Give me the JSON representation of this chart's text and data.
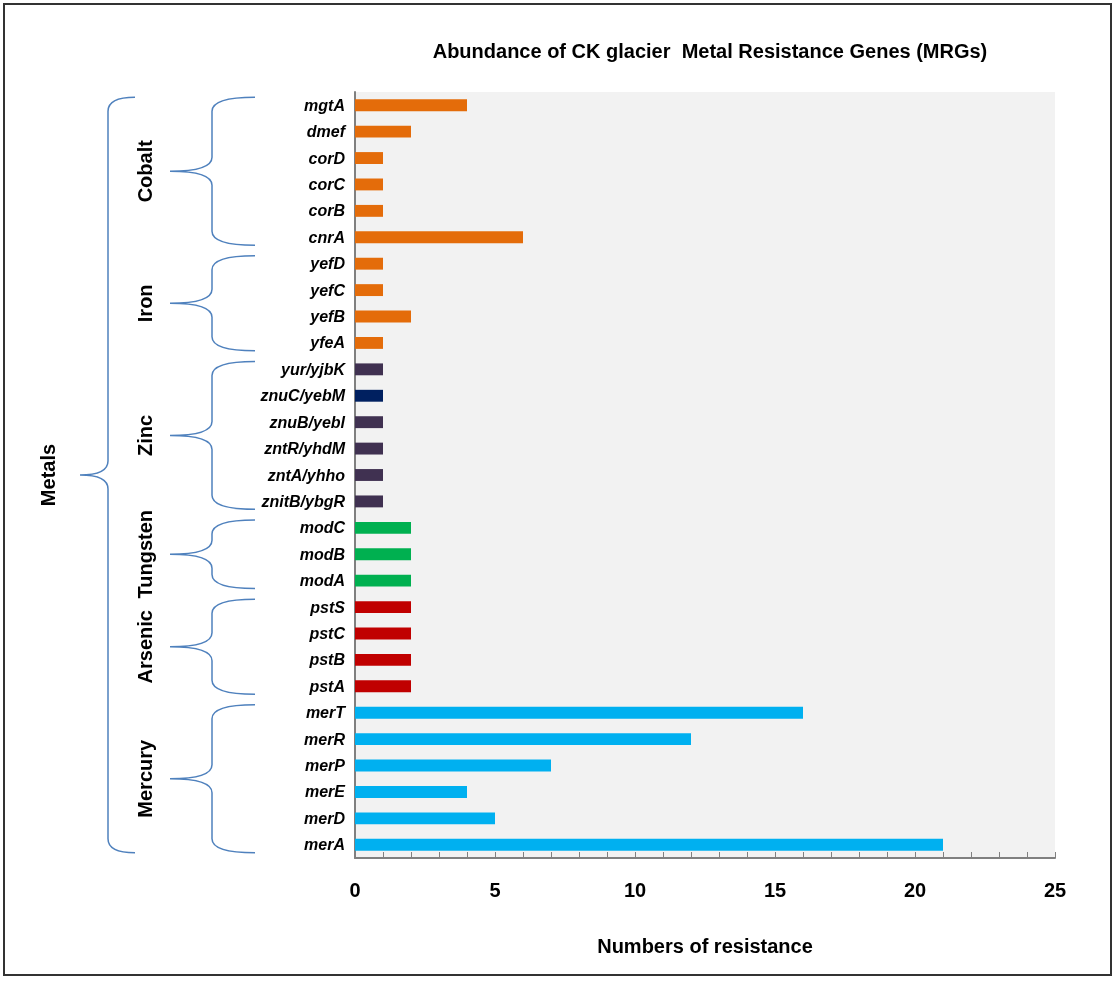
{
  "chart_data": {
    "type": "bar",
    "orientation": "horizontal",
    "title": "Abundance of CK glacier  Metal Resistance Genes (MRGs)",
    "xlabel": "Numbers of resistance",
    "categories": [
      "mgtA",
      "dmef",
      "corD",
      "corC",
      "corB",
      "cnrA",
      "yefD",
      "yefC",
      "yefB",
      "yfeA",
      "yur/yjbK",
      "znuC/yebM",
      "znuB/yebl",
      "zntR/yhdM",
      "zntA/yhho",
      "znitB/ybgR",
      "modC",
      "modB",
      "modA",
      "pstS",
      "pstC",
      "pstB",
      "pstA",
      "merT",
      "merR",
      "merP",
      "merE",
      "merD",
      "merA"
    ],
    "values": [
      4,
      2,
      1,
      1,
      1,
      6,
      1,
      1,
      2,
      1,
      1,
      1,
      1,
      1,
      1,
      1,
      2,
      2,
      2,
      2,
      2,
      2,
      2,
      16,
      12,
      7,
      4,
      5,
      21
    ],
    "colors": [
      "#e46c0a",
      "#e46c0a",
      "#e46c0a",
      "#e46c0a",
      "#e46c0a",
      "#e46c0a",
      "#e46c0a",
      "#e46c0a",
      "#e46c0a",
      "#e46c0a",
      "#403151",
      "#002060",
      "#403151",
      "#403151",
      "#403151",
      "#403151",
      "#00b050",
      "#00b050",
      "#00b050",
      "#c00000",
      "#c00000",
      "#c00000",
      "#c00000",
      "#00b0f0",
      "#00b0f0",
      "#00b0f0",
      "#00b0f0",
      "#00b0f0",
      "#00b0f0"
    ],
    "xlim": [
      0,
      25
    ],
    "xticks": [
      0,
      {
        "value": 1,
        "label": null
      },
      {
        "value": 2,
        "label": null
      },
      {
        "value": 3,
        "label": null
      },
      {
        "value": 4,
        "label": null
      },
      5,
      {
        "value": 6,
        "label": null
      },
      {
        "value": 7,
        "label": null
      },
      {
        "value": 8,
        "label": null
      },
      {
        "value": 9,
        "label": null
      },
      10,
      {
        "value": 11,
        "label": null
      },
      {
        "value": 12,
        "label": null
      },
      {
        "value": 13,
        "label": null
      },
      {
        "value": 14,
        "label": null
      },
      15,
      {
        "value": 16,
        "label": null
      },
      {
        "value": 17,
        "label": null
      },
      {
        "value": 18,
        "label": null
      },
      {
        "value": 19,
        "label": null
      },
      20,
      {
        "value": 21,
        "label": null
      },
      {
        "value": 22,
        "label": null
      },
      {
        "value": 23,
        "label": null
      },
      {
        "value": 24,
        "label": null
      },
      25
    ],
    "annotations": [
      "Cobalt",
      "Iron",
      "Zinc",
      "Tungsten",
      "Arsenic",
      "Mercury",
      "Metals"
    ],
    "grid": false
  }
}
